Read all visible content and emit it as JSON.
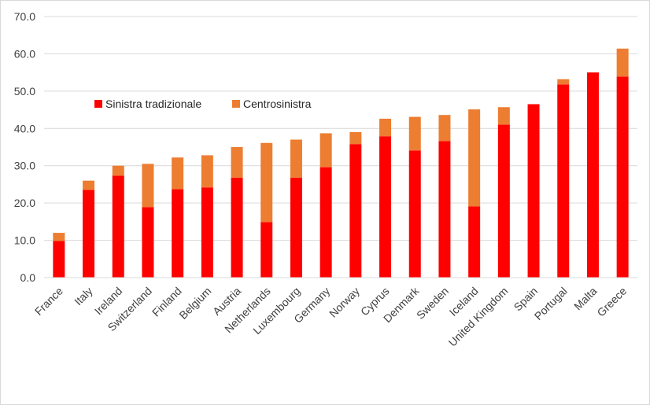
{
  "chart_data": {
    "type": "bar",
    "stacked": true,
    "categories": [
      "France",
      "Italy",
      "Ireland",
      "Switzerland",
      "Finland",
      "Belgium",
      "Austria",
      "Netherlands",
      "Luxembourg",
      "Germany",
      "Norway",
      "Cyprus",
      "Denmark",
      "Sweden",
      "Iceland",
      "United Kingdom",
      "Spain",
      "Portugal",
      "Malta",
      "Greece"
    ],
    "series": [
      {
        "name": "Sinistra tradizionale",
        "color": "#ff0000",
        "values": [
          9.8,
          23.5,
          27.3,
          18.9,
          23.7,
          24.2,
          26.8,
          14.9,
          26.8,
          29.6,
          35.8,
          37.9,
          34.1,
          36.6,
          19.1,
          41.0,
          46.5,
          51.8,
          55.0,
          53.9
        ]
      },
      {
        "name": "Centrosinistra",
        "color": "#ed7d31",
        "values": [
          2.2,
          2.5,
          2.7,
          11.6,
          8.5,
          8.6,
          8.2,
          21.2,
          10.2,
          9.1,
          3.2,
          4.7,
          9.0,
          7.0,
          26.0,
          4.7,
          0.0,
          1.4,
          0.0,
          7.5
        ]
      }
    ],
    "ylim": [
      0,
      70
    ],
    "yticks": [
      "0.0",
      "10.0",
      "20.0",
      "30.0",
      "40.0",
      "50.0",
      "60.0",
      "70.0"
    ],
    "grid": true,
    "legend_position": "upper-left, inside plot",
    "title": "",
    "xlabel": "",
    "ylabel": ""
  }
}
